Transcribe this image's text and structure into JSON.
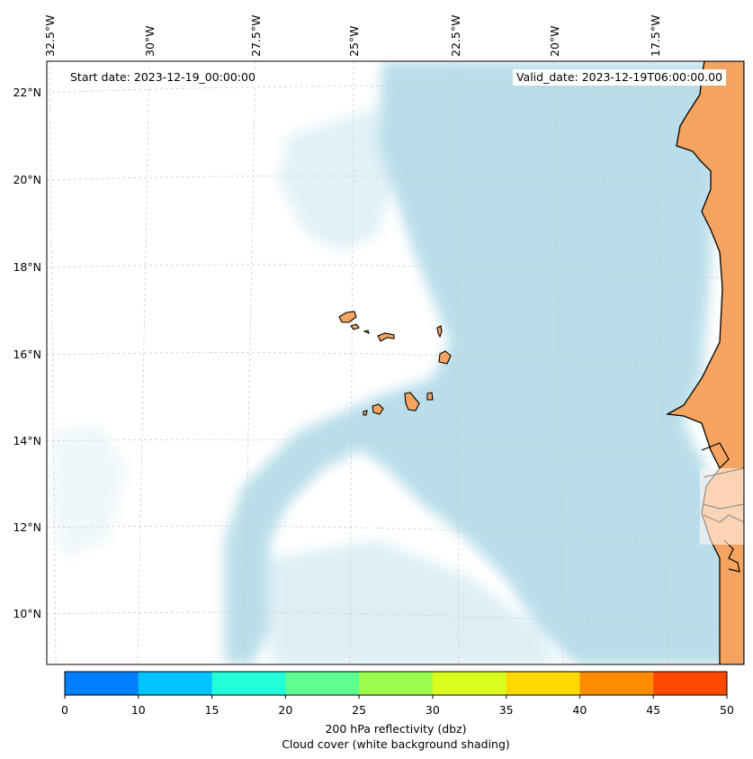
{
  "map": {
    "start_date": "Start date: 2023-12-19_00:00:00",
    "valid_date": "Valid_date: 2023-12-19T06:00:00.00",
    "lon_labels": [
      "32.5°W",
      "30°W",
      "27.5°W",
      "25°W",
      "22.5°W",
      "20°W",
      "17.5°W"
    ],
    "lat_labels": [
      "22°N",
      "20°N",
      "18°N",
      "16°N",
      "14°N",
      "12°N",
      "10°N"
    ],
    "colors": {
      "land": "#f4a460",
      "cloud": "#add8e6",
      "coast": "#000000",
      "grid": "#c8c8c8"
    }
  },
  "colorbar": {
    "ticks": [
      "0",
      "10",
      "15",
      "20",
      "25",
      "30",
      "35",
      "40",
      "45",
      "50"
    ],
    "colors": [
      "#0080ff",
      "#00c4ff",
      "#20ffd8",
      "#5cff90",
      "#9cff50",
      "#d8ff20",
      "#ffd800",
      "#ff8c00",
      "#ff4800"
    ],
    "label": "200 hPa reflectivity (dbz)",
    "sublabel": "Cloud cover (white background shading)"
  }
}
